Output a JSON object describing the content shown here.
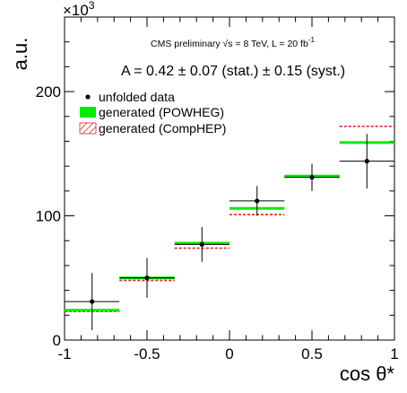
{
  "chart_data": {
    "type": "scatter",
    "title": "",
    "xlabel": "cos θ*",
    "ylabel": "a.u.",
    "y_multiplier": "×10",
    "y_multiplier_exp": "3",
    "xlim": [
      -1,
      1
    ],
    "ylim": [
      0,
      260
    ],
    "x_ticks": [
      -1,
      -0.5,
      0,
      0.5,
      1
    ],
    "x_tick_labels": [
      "-1",
      "-0.5",
      "0",
      "0.5",
      "1"
    ],
    "y_ticks": [
      0,
      100,
      200
    ],
    "y_tick_labels": [
      "0",
      "100",
      "200"
    ],
    "annotations": {
      "header_main": "CMS preliminary  √s = 8 TeV, L = 20 fb",
      "header_sup": "-1",
      "asymmetry": "A = 0.42 ± 0.07 (stat.) ± 0.15 (syst.)"
    },
    "legend": {
      "position": "top-left",
      "entries": [
        {
          "label": "unfolded data",
          "symbol": "marker"
        },
        {
          "label": "generated (POWHEG)",
          "symbol": "green-box"
        },
        {
          "label": "generated (CompHEP)",
          "symbol": "red-hatched"
        }
      ]
    },
    "bins": [
      -1,
      -0.667,
      -0.333,
      0,
      0.333,
      0.667,
      1
    ],
    "series": [
      {
        "name": "unfolded data",
        "color": "#000000",
        "x": [
          -0.833,
          -0.5,
          -0.167,
          0.167,
          0.5,
          0.833
        ],
        "y": [
          31,
          50,
          77,
          112,
          131,
          144
        ],
        "y_err": [
          23,
          16,
          14,
          12,
          11,
          22
        ]
      },
      {
        "name": "generated (POWHEG)",
        "color": "#00ee00",
        "values": [
          24,
          50,
          78,
          106,
          132,
          159
        ]
      },
      {
        "name": "generated (CompHEP)",
        "color": "#e8232a",
        "values": [
          23,
          48,
          74,
          101,
          132,
          172
        ]
      }
    ]
  }
}
